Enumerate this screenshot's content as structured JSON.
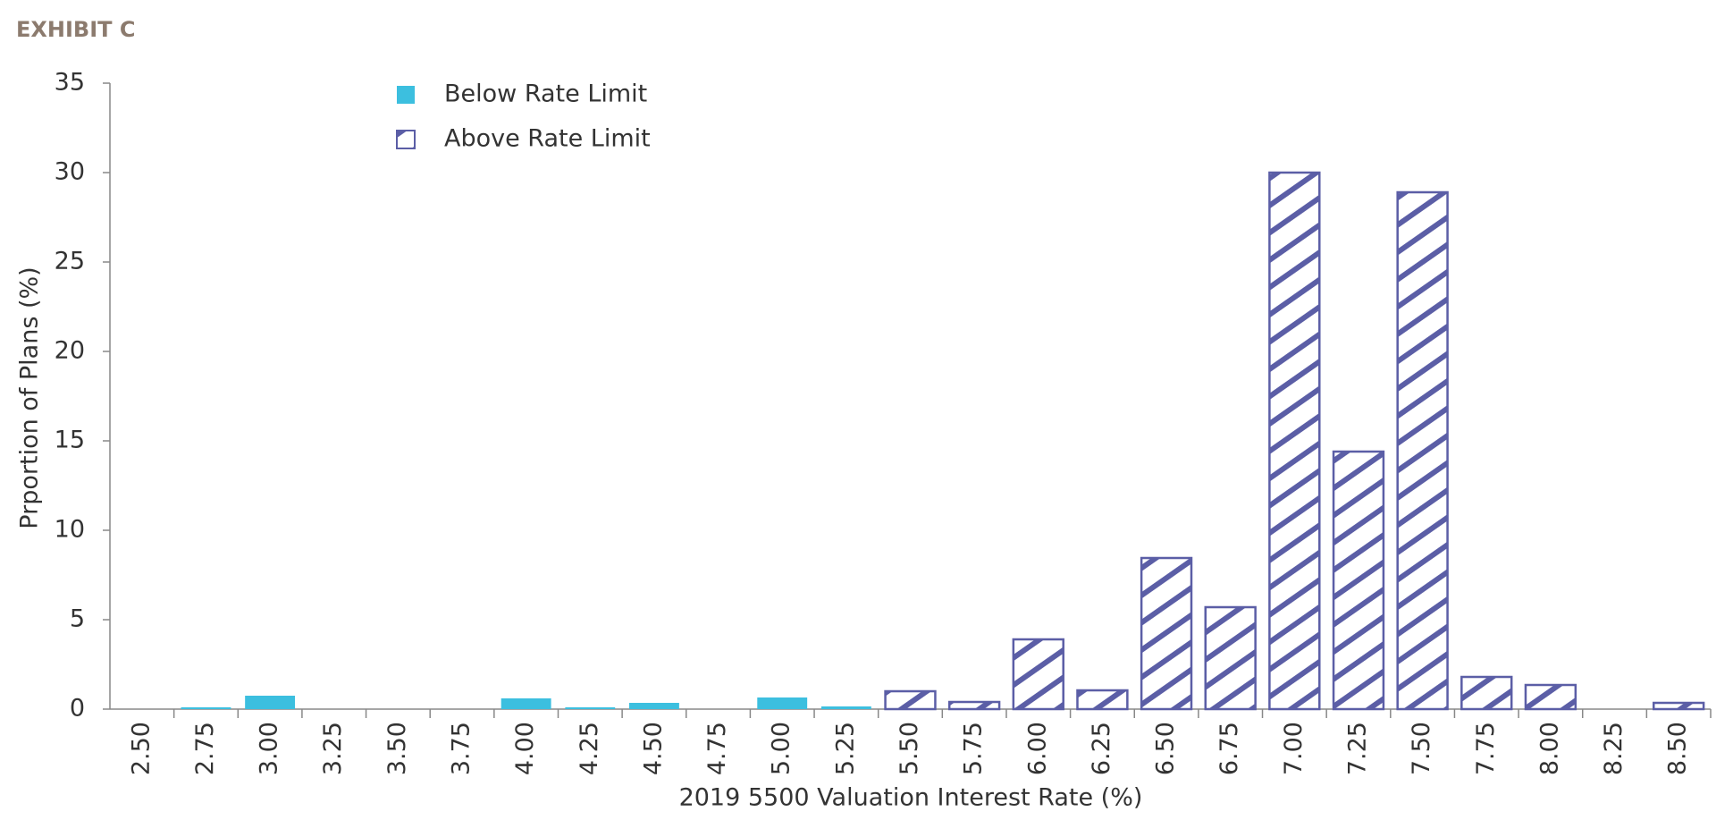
{
  "chart_data": {
    "type": "bar",
    "title": "EXHIBIT C",
    "x_label": "2019 5500 Valuation Interest Rate (%)",
    "y_label": "Prportion of Plans (%)",
    "categories": [
      "2.50",
      "2.75",
      "3.00",
      "3.25",
      "3.50",
      "3.75",
      "4.00",
      "4.25",
      "4.50",
      "4.75",
      "5.00",
      "5.25",
      "5.50",
      "5.75",
      "6.00",
      "6.25",
      "6.50",
      "6.75",
      "7.00",
      "7.25",
      "7.50",
      "7.75",
      "8.00",
      "8.25",
      "8.50"
    ],
    "series": [
      {
        "name": "Below Rate Limit",
        "color": "#3cbfdf",
        "hatch": false,
        "values": [
          0,
          0.1,
          0.75,
          0,
          0,
          0,
          0.6,
          0.1,
          0.35,
          0,
          0.65,
          0.15,
          null,
          null,
          null,
          null,
          null,
          null,
          null,
          null,
          null,
          null,
          null,
          null,
          null
        ]
      },
      {
        "name": "Above Rate Limit",
        "color": "#5b5ea6",
        "hatch": true,
        "values": [
          null,
          null,
          null,
          null,
          null,
          null,
          null,
          null,
          null,
          null,
          null,
          null,
          1.0,
          0.4,
          3.9,
          1.05,
          8.45,
          5.7,
          30.0,
          14.4,
          28.9,
          1.8,
          1.35,
          0,
          0.35
        ]
      }
    ],
    "ylim": [
      0,
      35
    ],
    "yticks": [
      0,
      5,
      10,
      15,
      20,
      25,
      30,
      35
    ],
    "grid": false
  }
}
